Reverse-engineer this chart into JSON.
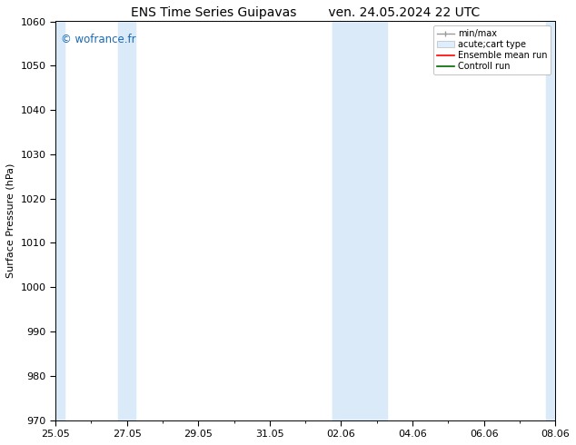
{
  "title_left": "ENS Time Series Guipavas",
  "title_right": "ven. 24.05.2024 22 UTC",
  "ylabel": "Surface Pressure (hPa)",
  "ylim": [
    970,
    1060
  ],
  "yticks": [
    970,
    980,
    990,
    1000,
    1010,
    1020,
    1030,
    1040,
    1050,
    1060
  ],
  "x_tick_labels": [
    "25.05",
    "27.05",
    "29.05",
    "31.05",
    "02.06",
    "04.06",
    "06.06",
    "08.06"
  ],
  "x_tick_positions": [
    0,
    2,
    4,
    6,
    8,
    10,
    12,
    14
  ],
  "x_total_days": 14,
  "shaded_bands": [
    {
      "x_start": 0.0,
      "x_end": 0.25
    },
    {
      "x_start": 1.75,
      "x_end": 2.25
    },
    {
      "x_start": 7.75,
      "x_end": 9.25
    },
    {
      "x_start": 13.75,
      "x_end": 14.0
    }
  ],
  "shaded_color": "#daeaf8",
  "watermark": "© wofrance.fr",
  "watermark_color": "#1a6ab5",
  "bg_color": "#ffffff",
  "plot_bg_color": "#ffffff",
  "tick_fontsize": 8,
  "label_fontsize": 8,
  "title_fontsize": 10,
  "legend_fontsize": 7
}
